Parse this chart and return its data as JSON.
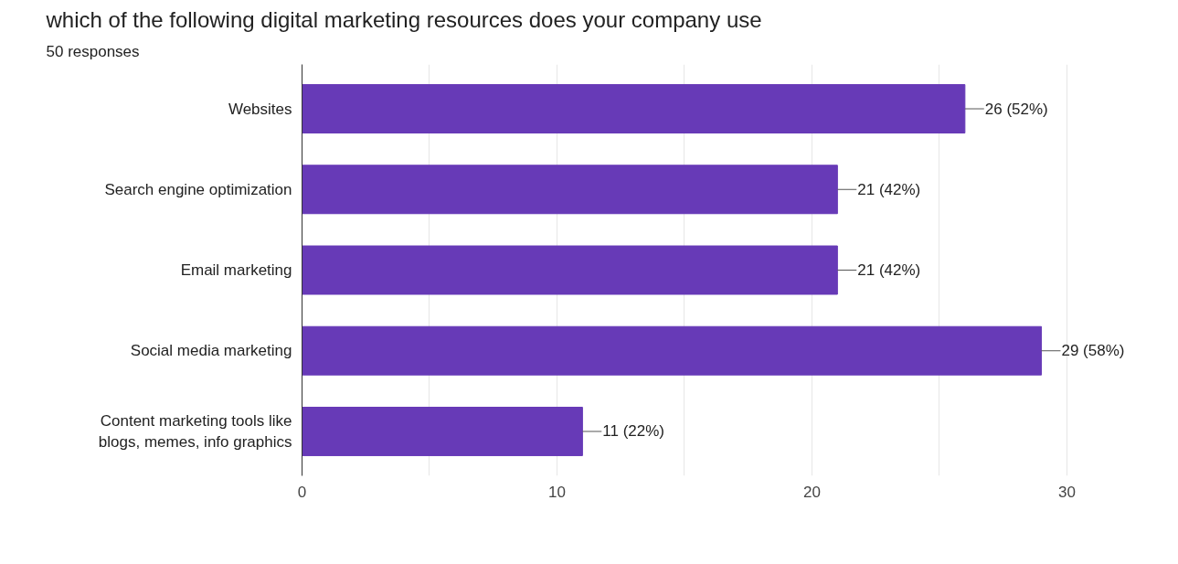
{
  "chart_data": {
    "type": "bar",
    "orientation": "horizontal",
    "title": "which of the following digital marketing resources does your company use",
    "subtitle": "50 responses",
    "categories": [
      "Websites",
      "Search engine optimization",
      "Email marketing",
      "Social media marketing",
      "Content marketing tools like\nblogs, memes, info graphics"
    ],
    "values": [
      26,
      21,
      21,
      29,
      11
    ],
    "value_labels": [
      "26 (52%)",
      "21 (42%)",
      "21 (42%)",
      "29 (58%)",
      "11 (22%)"
    ],
    "color": "#673ab7",
    "xlim": [
      0,
      30
    ],
    "xticks": [
      0,
      {
        "value": 5,
        "label": null
      },
      10,
      {
        "value": 15,
        "label": null
      },
      20,
      {
        "value": 25,
        "label": null
      },
      30
    ],
    "grid": "x",
    "legend": false
  }
}
